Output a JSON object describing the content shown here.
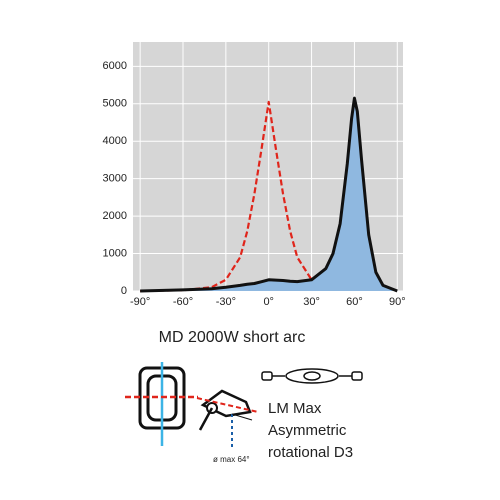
{
  "chart_data": {
    "type": "line",
    "x": [
      -90,
      -60,
      -40,
      -30,
      -20,
      -15,
      -10,
      -5,
      0,
      5,
      10,
      15,
      20,
      30,
      40,
      45,
      50,
      55,
      58,
      60,
      62,
      65,
      70,
      75,
      80,
      90
    ],
    "series": [
      {
        "color": "#e0251b",
        "dashed": true,
        "values": [
          0,
          20,
          100,
          300,
          900,
          1600,
          2600,
          3800,
          5050,
          3800,
          2600,
          1600,
          900,
          300,
          100,
          null,
          null,
          null,
          null,
          20,
          null,
          null,
          null,
          null,
          null,
          0
        ]
      },
      {
        "color": "#111111",
        "fill": "#8fb8e0",
        "dashed": false,
        "values": [
          0,
          30,
          60,
          100,
          150,
          180,
          200,
          250,
          300,
          290,
          280,
          260,
          250,
          300,
          600,
          1000,
          1800,
          3400,
          4600,
          5150,
          4800,
          3500,
          1500,
          500,
          150,
          0
        ]
      }
    ],
    "xlim": [
      -95,
      94
    ],
    "ylim": [
      0,
      6650
    ],
    "xticks": [
      {
        "value": -90,
        "label": "-90°"
      },
      {
        "value": -60,
        "label": "-60°"
      },
      {
        "value": -30,
        "label": "-30°"
      },
      {
        "value": 0,
        "label": "0°"
      },
      {
        "value": 30,
        "label": "30°"
      },
      {
        "value": 60,
        "label": "60°"
      },
      {
        "value": 90,
        "label": "90°"
      }
    ],
    "yticks": [
      0,
      1000,
      2000,
      3000,
      4000,
      5000,
      6000
    ],
    "grid": true,
    "background": "#d6d6d6"
  },
  "caption": "MD 2000W  short arc",
  "beam_note": "ø max 64°",
  "description": [
    "LM Max",
    "Asymmetric",
    "rotational D3"
  ]
}
